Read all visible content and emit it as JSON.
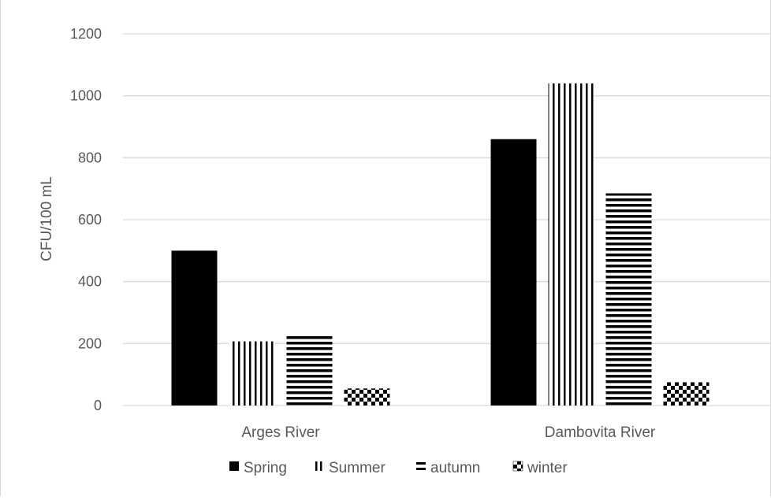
{
  "chart_data": {
    "type": "bar",
    "title": "",
    "xlabel": "",
    "ylabel": "CFU/100 mL",
    "ylim": [
      0,
      1200
    ],
    "yticks": [
      0,
      200,
      400,
      600,
      800,
      1000,
      1200
    ],
    "categories": [
      "Arges River",
      "Dambovita River"
    ],
    "series": [
      {
        "name": "Spring",
        "values": [
          500,
          860
        ],
        "pattern": "solid"
      },
      {
        "name": "Summer",
        "values": [
          207,
          1040
        ],
        "pattern": "vertical-lines"
      },
      {
        "name": "autumn",
        "values": [
          225,
          685
        ],
        "pattern": "horizontal-lines"
      },
      {
        "name": "winter",
        "values": [
          55,
          75
        ],
        "pattern": "checker"
      }
    ],
    "grid": true,
    "legend_position": "bottom",
    "colors": {
      "bars": "#000000",
      "grid": "#d9d9d9",
      "text": "#595959"
    }
  }
}
